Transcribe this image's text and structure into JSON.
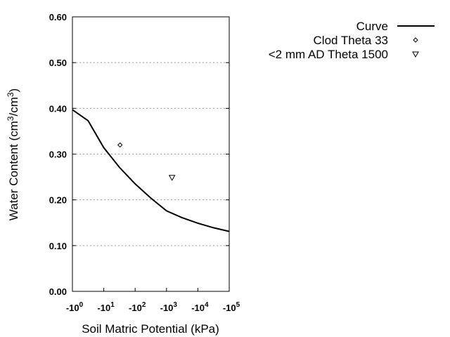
{
  "chart_data": {
    "type": "line",
    "xlabel": "Soil Matric Potential (kPa)",
    "ylabel_parts": [
      "Water Content (cm",
      "3",
      "/cm",
      "3",
      ")"
    ],
    "x_scale": "log (negative values)",
    "xlim": [
      -1,
      -100000
    ],
    "ylim": [
      0.0,
      0.6
    ],
    "grid": "horizontal dotted",
    "legend_placement": "top-right outside",
    "yticks": [
      "0.00",
      "0.10",
      "0.20",
      "0.30",
      "0.40",
      "0.50",
      "0.60"
    ],
    "ytick_values": [
      0,
      0.1,
      0.2,
      0.3,
      0.4,
      0.5,
      0.6
    ],
    "xticks": [
      {
        "base": "-10",
        "exp": "0",
        "value": -1
      },
      {
        "base": "-10",
        "exp": "1",
        "value": -10
      },
      {
        "base": "-10",
        "exp": "2",
        "value": -100
      },
      {
        "base": "-10",
        "exp": "3",
        "value": -1000
      },
      {
        "base": "-10",
        "exp": "4",
        "value": -10000
      },
      {
        "base": "-10",
        "exp": "5",
        "value": -100000
      }
    ],
    "series": [
      {
        "name": "Curve",
        "kind": "line",
        "color": "#000000",
        "x": [
          -1,
          -3.16,
          -10,
          -31.6,
          -100,
          -316,
          -1000,
          -3162,
          -10000,
          -31623,
          -100000
        ],
        "y": [
          0.397,
          0.373,
          0.314,
          0.271,
          0.235,
          0.204,
          0.176,
          0.161,
          0.149,
          0.139,
          0.131
        ]
      },
      {
        "name": "Clod Theta 33",
        "kind": "marker",
        "marker": "diamond",
        "x": [
          -33
        ],
        "y": [
          0.32
        ]
      },
      {
        "name": "<2 mm AD Theta 1500",
        "kind": "marker",
        "marker": "triangle-down",
        "x": [
          -1500
        ],
        "y": [
          0.249
        ]
      }
    ]
  }
}
